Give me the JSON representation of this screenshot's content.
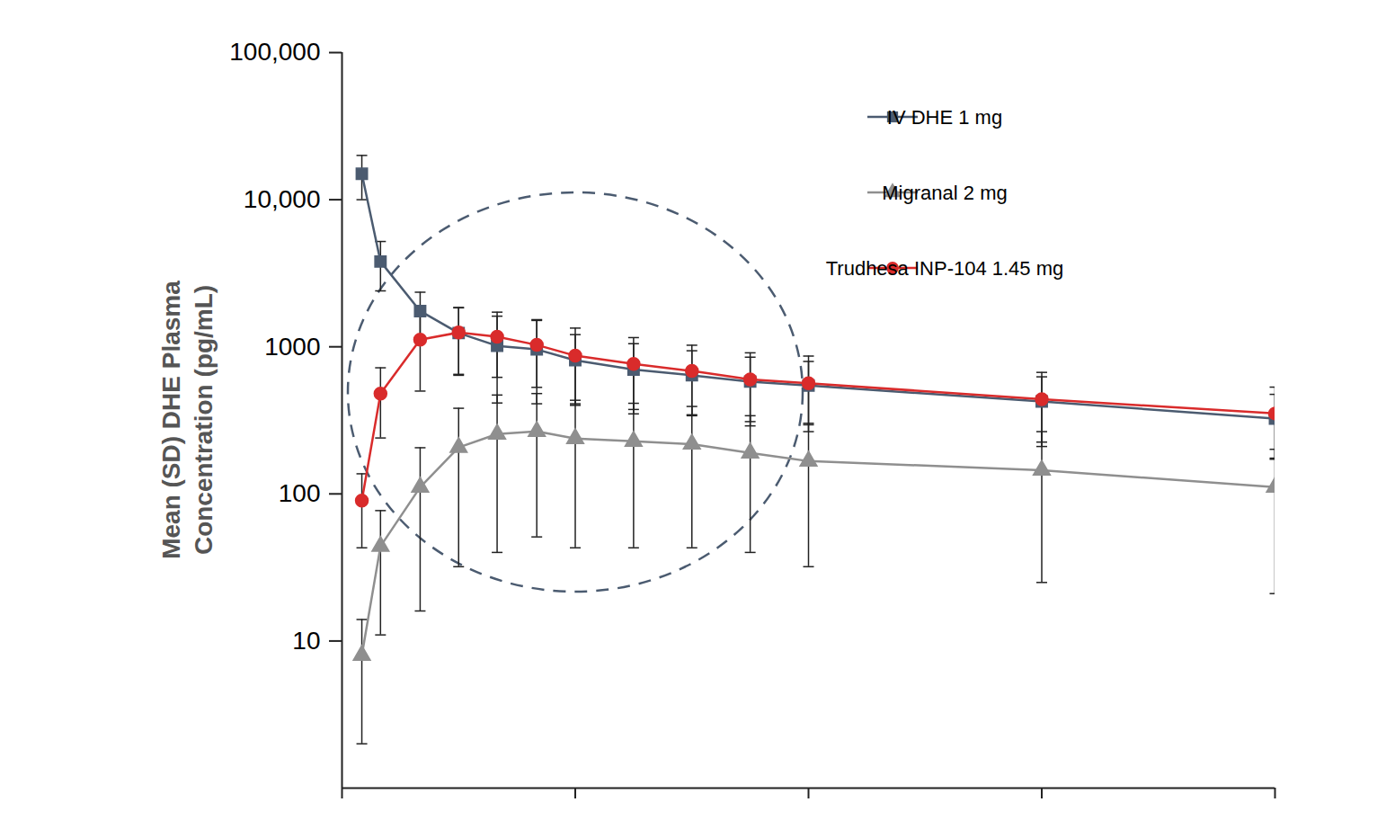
{
  "chart_data": {
    "type": "line",
    "ylabel": "Mean (SD) DHE Plasma Concentration (pg/mL)",
    "x": [
      0.17,
      0.33,
      0.67,
      1,
      1.33,
      1.67,
      2,
      2.5,
      3,
      3.5,
      4,
      6,
      8
    ],
    "xlim": [
      0,
      8
    ],
    "xticks": [
      0,
      2,
      4,
      6,
      8
    ],
    "ylim": [
      1,
      100000
    ],
    "yticks": [
      {
        "value": 100000,
        "label": "100,000"
      },
      {
        "value": 10000,
        "label": "10,000"
      },
      1000,
      100,
      10
    ],
    "log": "y",
    "grid": false,
    "legend": "top-right",
    "tick_labels": "y",
    "series": [
      {
        "name": "IV DHE 1 mg",
        "color": "#4b5b70",
        "marker": "square",
        "line_style": "solid",
        "values": [
          15000,
          3800,
          1750,
          1240,
          1015,
          960,
          810,
          700,
          640,
          580,
          545,
          425,
          325
        ],
        "sd": [
          5000,
          1400,
          600,
          600,
          600,
          550,
          400,
          350,
          300,
          270,
          250,
          200,
          150
        ]
      },
      {
        "name": "Migranal 2 mg",
        "color": "#8f8f8f",
        "marker": "triangle",
        "line_style": "solid",
        "values": [
          8,
          44,
          111,
          207,
          255,
          266,
          238,
          228,
          218,
          190,
          167,
          145,
          111
        ],
        "sd": [
          6,
          33,
          95,
          175,
          215,
          215,
          195,
          185,
          175,
          150,
          135,
          120,
          90
        ]
      },
      {
        "name": "Trudhesa INP-104 1.45 mg",
        "color": "#d92b2b",
        "marker": "circle",
        "line_style": "solid",
        "values": [
          90,
          480,
          1120,
          1250,
          1170,
          1030,
          870,
          765,
          685,
          600,
          565,
          440,
          352
        ],
        "sd": [
          47,
          240,
          620,
          600,
          550,
          500,
          470,
          390,
          340,
          310,
          300,
          230,
          180
        ]
      }
    ]
  }
}
